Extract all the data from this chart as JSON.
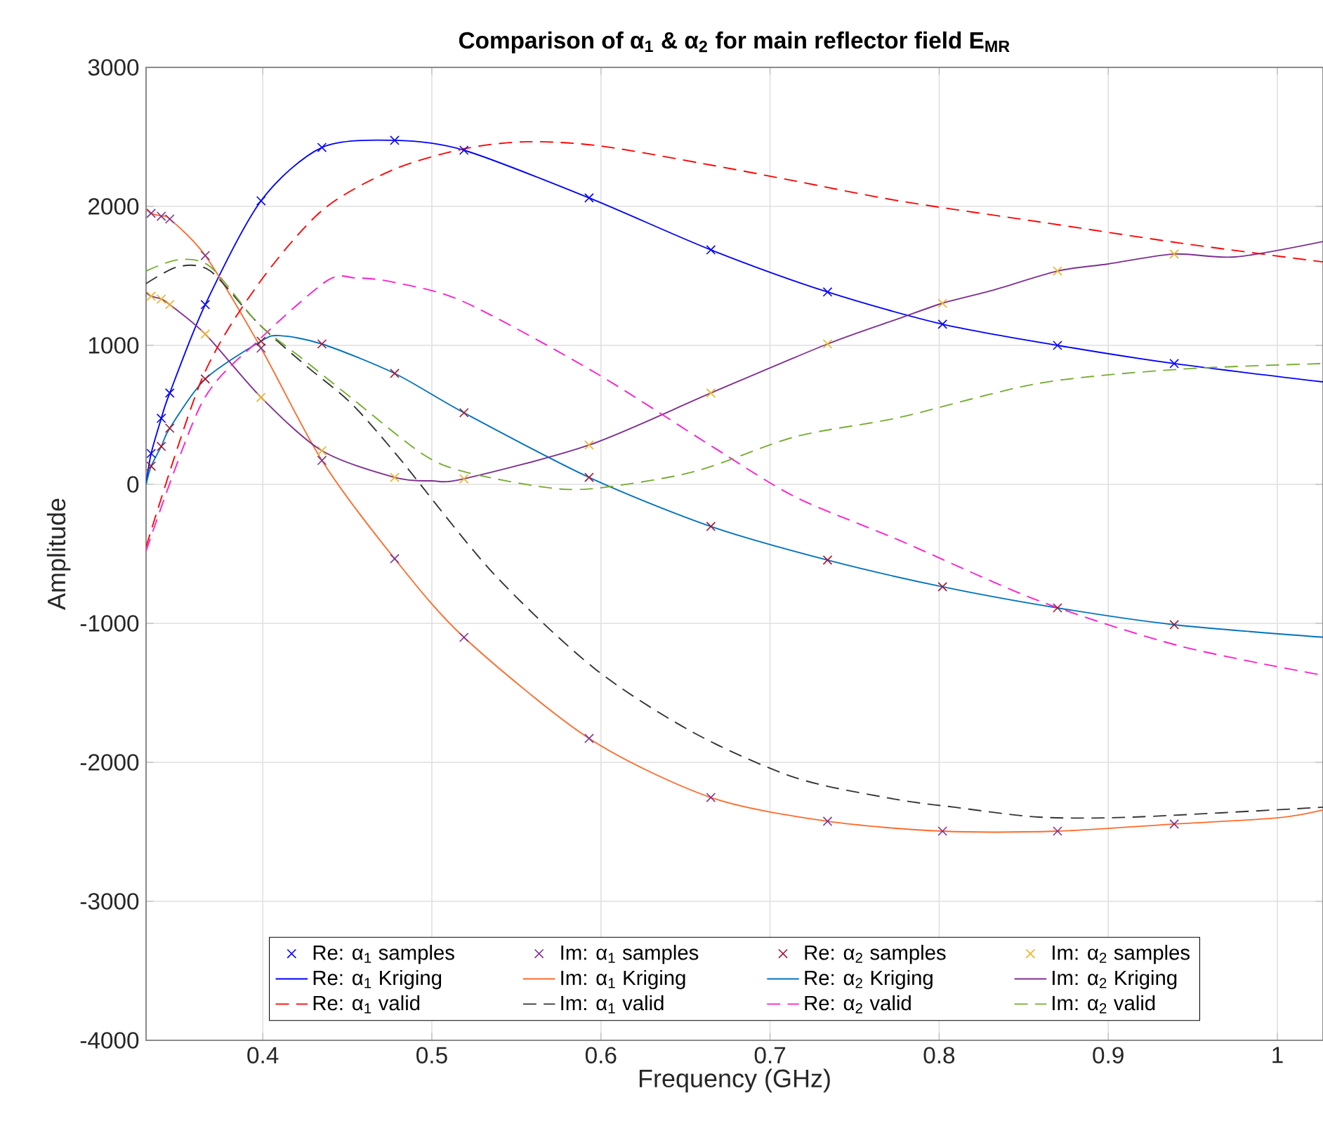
{
  "chart_data": {
    "type": "line",
    "title": "Comparison of α$_{1}$ & α$_{2}$ for main reflector field E$_{MR}$",
    "xlabel": "Frequency (GHz)",
    "ylabel": "Amplitude",
    "x": [
      0.334,
      0.34,
      0.345,
      0.366,
      0.399,
      0.435,
      0.478,
      0.519,
      0.593,
      0.665,
      0.734,
      0.802,
      0.87,
      0.939
    ],
    "series": [
      {
        "name": "Re: α$_{1}$ samples",
        "type": "scatter",
        "marker": "cross",
        "color": "#0000ff",
        "values": [
          222,
          475,
          657,
          1293,
          2040,
          2424,
          2475,
          2404,
          2061,
          1687,
          1384,
          1152,
          1000,
          869
        ]
      },
      {
        "name": "Im: α$_{1}$ samples",
        "type": "scatter",
        "marker": "cross",
        "color": "#7e2f8e",
        "values": [
          1950,
          1929,
          1909,
          1646,
          980,
          172,
          -535,
          -1101,
          -1828,
          -2253,
          -2424,
          -2495,
          -2495,
          -2444
        ]
      },
      {
        "name": "Re: α$_{2}$ samples",
        "type": "scatter",
        "marker": "cross",
        "color": "#a2142f",
        "values": [
          131,
          273,
          404,
          758,
          1030,
          1010,
          798,
          515,
          50,
          -303,
          -545,
          -737,
          -889,
          -1010
        ]
      },
      {
        "name": "Im: α$_{2}$ samples",
        "type": "scatter",
        "marker": "cross",
        "color": "#edb120",
        "values": [
          1354,
          1333,
          1293,
          1081,
          626,
          242,
          50,
          40,
          283,
          657,
          1010,
          1303,
          1535,
          1657
        ]
      },
      {
        "name": "Re: α$_{1}$ Kriging",
        "line_style": "solid",
        "color": "#0000ff",
        "x": [
          0.331,
          0.334,
          0.34,
          0.345,
          0.366,
          0.399,
          0.435,
          0.478,
          0.519,
          0.593,
          0.665,
          0.734,
          0.802,
          0.87,
          0.939,
          1.027
        ],
        "values": [
          0,
          222,
          475,
          657,
          1293,
          2040,
          2424,
          2475,
          2404,
          2061,
          1687,
          1384,
          1152,
          1000,
          869,
          737
        ]
      },
      {
        "name": "Im: α$_{1}$ Kriging",
        "line_style": "solid",
        "color": "#ff6a2a",
        "x": [
          0.331,
          0.334,
          0.34,
          0.345,
          0.366,
          0.399,
          0.435,
          0.478,
          0.519,
          0.593,
          0.665,
          0.734,
          0.802,
          0.87,
          0.939,
          1.0,
          1.027
        ],
        "values": [
          1980,
          1950,
          1929,
          1909,
          1646,
          980,
          172,
          -535,
          -1101,
          -1828,
          -2253,
          -2424,
          -2495,
          -2495,
          -2444,
          -2400,
          -2343
        ]
      },
      {
        "name": "Re: α$_{2}$ Kriging",
        "line_style": "solid",
        "color": "#0072bd",
        "x": [
          0.331,
          0.334,
          0.34,
          0.345,
          0.366,
          0.399,
          0.41,
          0.435,
          0.478,
          0.519,
          0.593,
          0.665,
          0.734,
          0.802,
          0.87,
          0.939,
          1.027
        ],
        "values": [
          0,
          131,
          273,
          404,
          758,
          1030,
          1070,
          1010,
          798,
          515,
          50,
          -303,
          -545,
          -737,
          -889,
          -1010,
          -1100
        ]
      },
      {
        "name": "Im: α$_{2}$ Kriging",
        "line_style": "solid",
        "color": "#7e2f8e",
        "x": [
          0.331,
          0.334,
          0.34,
          0.345,
          0.366,
          0.399,
          0.435,
          0.478,
          0.5,
          0.519,
          0.593,
          0.665,
          0.734,
          0.776,
          0.802,
          0.831,
          0.87,
          0.9,
          0.939,
          0.975,
          1.027
        ],
        "values": [
          1380,
          1354,
          1333,
          1293,
          1081,
          626,
          242,
          50,
          25,
          40,
          283,
          657,
          1010,
          1192,
          1303,
          1394,
          1535,
          1586,
          1657,
          1636,
          1747
        ]
      },
      {
        "name": "Re: α$_{1}$ valid",
        "line_style": "dashed",
        "color": "#ff0000",
        "x": [
          0.331,
          0.364,
          0.397,
          0.435,
          0.477,
          0.519,
          0.556,
          0.6,
          0.667,
          0.715,
          0.776,
          0.859,
          0.942,
          1.027
        ],
        "values": [
          -450,
          758,
          1434,
          1970,
          2263,
          2414,
          2465,
          2434,
          2293,
          2182,
          2040,
          1889,
          1737,
          1600
        ]
      },
      {
        "name": "Im: α$_{1}$ valid",
        "line_style": "dashed",
        "color": "#333333",
        "x": [
          0.331,
          0.35,
          0.369,
          0.397,
          0.425,
          0.452,
          0.48,
          0.536,
          0.596,
          0.655,
          0.715,
          0.773,
          0.809,
          0.859,
          0.915,
          1.027
        ],
        "values": [
          1444,
          1566,
          1535,
          1162,
          859,
          586,
          200,
          -636,
          -1323,
          -1788,
          -2111,
          -2263,
          -2323,
          -2394,
          -2394,
          -2323
        ]
      },
      {
        "name": "Re: α$_{2}$ valid",
        "line_style": "dashed",
        "color": "#ff1dce",
        "x": [
          0.331,
          0.364,
          0.397,
          0.438,
          0.455,
          0.477,
          0.519,
          0.596,
          0.667,
          0.715,
          0.776,
          0.859,
          0.942,
          1.027
        ],
        "values": [
          -480,
          586,
          1030,
          1465,
          1485,
          1455,
          1313,
          808,
          263,
          -91,
          -400,
          -838,
          -1162,
          -1374
        ]
      },
      {
        "name": "Im: α$_{2}$ valid",
        "line_style": "dashed",
        "color": "#77ac30",
        "x": [
          0.331,
          0.35,
          0.369,
          0.397,
          0.425,
          0.452,
          0.494,
          0.519,
          0.566,
          0.596,
          0.655,
          0.715,
          0.776,
          0.859,
          0.942,
          1.027
        ],
        "values": [
          1535,
          1616,
          1566,
          1162,
          889,
          626,
          222,
          91,
          -20,
          -30,
          91,
          343,
          480,
          727,
          828,
          869
        ]
      }
    ],
    "xlim": [
      0.331,
      1.027
    ],
    "ylim": [
      -4000,
      3000
    ],
    "xticks": [
      0.4,
      0.5,
      0.6,
      0.7,
      0.8,
      0.9,
      1
    ],
    "yticks": [
      -4000,
      -3000,
      -2000,
      -1000,
      0,
      1000,
      2000,
      3000
    ],
    "grid": true,
    "legend": "bottom"
  }
}
